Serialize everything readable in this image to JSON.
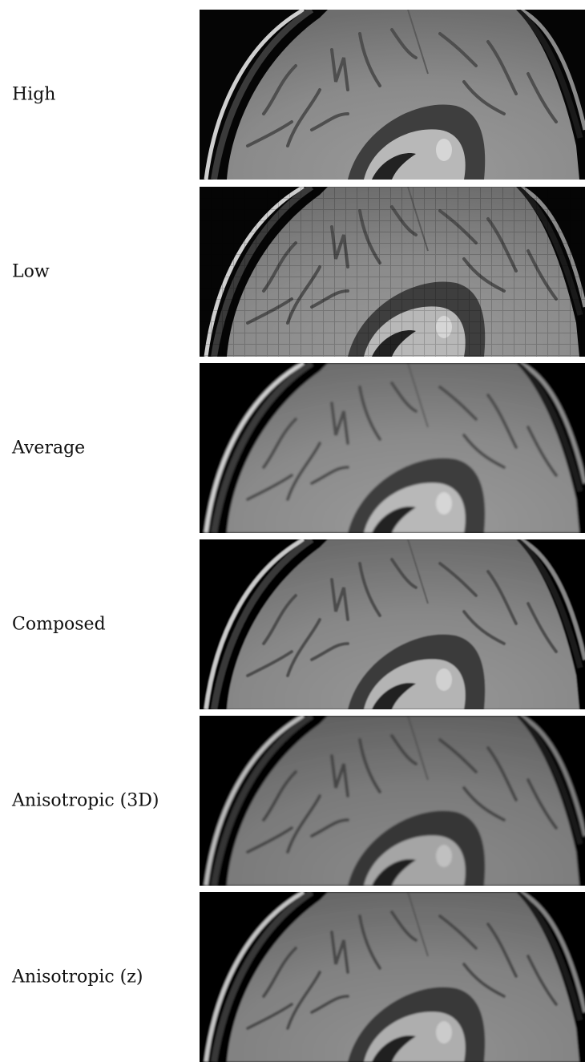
{
  "rows": [
    {
      "label": "High",
      "variant": "high"
    },
    {
      "label": "Low",
      "variant": "low"
    },
    {
      "label": "Average",
      "variant": "average"
    },
    {
      "label": "Composed",
      "variant": "composed"
    },
    {
      "label": "Anisotropic (3D)",
      "variant": "aniso3d"
    },
    {
      "label": "Anisotropic (z)",
      "variant": "anisoz"
    }
  ],
  "image_subject": "mri-brain-axial-slice-crop"
}
